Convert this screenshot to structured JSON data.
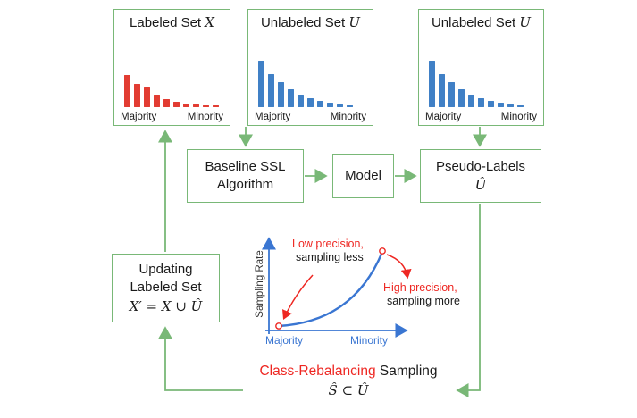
{
  "colors": {
    "green": "#79b877",
    "red_bar": "#e23c32",
    "blue_bar": "#4080c6",
    "annotation_red": "#ee2722",
    "curve_blue": "#3a76d2",
    "text": "#1a1a1a"
  },
  "top_boxes": {
    "labeled": {
      "title_prefix": "Labeled Set ",
      "title_symbol": "X",
      "bars": [
        36,
        26,
        23,
        14,
        9,
        6,
        4,
        3,
        2,
        2
      ],
      "x_left": "Majority",
      "x_right": "Minority"
    },
    "unlabeled_mid": {
      "title_prefix": "Unlabeled Set ",
      "title_symbol": "U",
      "bars": [
        52,
        37,
        28,
        20,
        14,
        10,
        7,
        5,
        3,
        2
      ],
      "x_left": "Majority",
      "x_right": "Minority"
    },
    "unlabeled_right": {
      "title_prefix": "Unlabeled Set ",
      "title_symbol": "U",
      "bars": [
        52,
        37,
        28,
        20,
        14,
        10,
        7,
        5,
        3,
        2
      ],
      "x_left": "Majority",
      "x_right": "Minority"
    }
  },
  "flow_boxes": {
    "baseline_ssl": {
      "line1": "Baseline SSL",
      "line2": "Algorithm"
    },
    "model": {
      "label": "Model"
    },
    "pseudo_labels": {
      "line1": "Pseudo-Labels",
      "symbol": "Û"
    },
    "updating": {
      "line1": "Updating",
      "line2": "Labeled Set",
      "formula": "X′ = X ∪ Û"
    }
  },
  "plot": {
    "ylabel": "Sampling Rate",
    "x_left": "Majority",
    "x_right": "Minority",
    "low_annotation": {
      "red": "Low precision,",
      "black": "sampling less"
    },
    "high_annotation": {
      "red": "High precision,",
      "black": "sampling more"
    },
    "curve_type": "sampling rate increases from majority to minority classes"
  },
  "bottom": {
    "label_red": "Class-Rebalancing",
    "label_black": " Sampling",
    "formula": "Ŝ ⊂ Û"
  }
}
